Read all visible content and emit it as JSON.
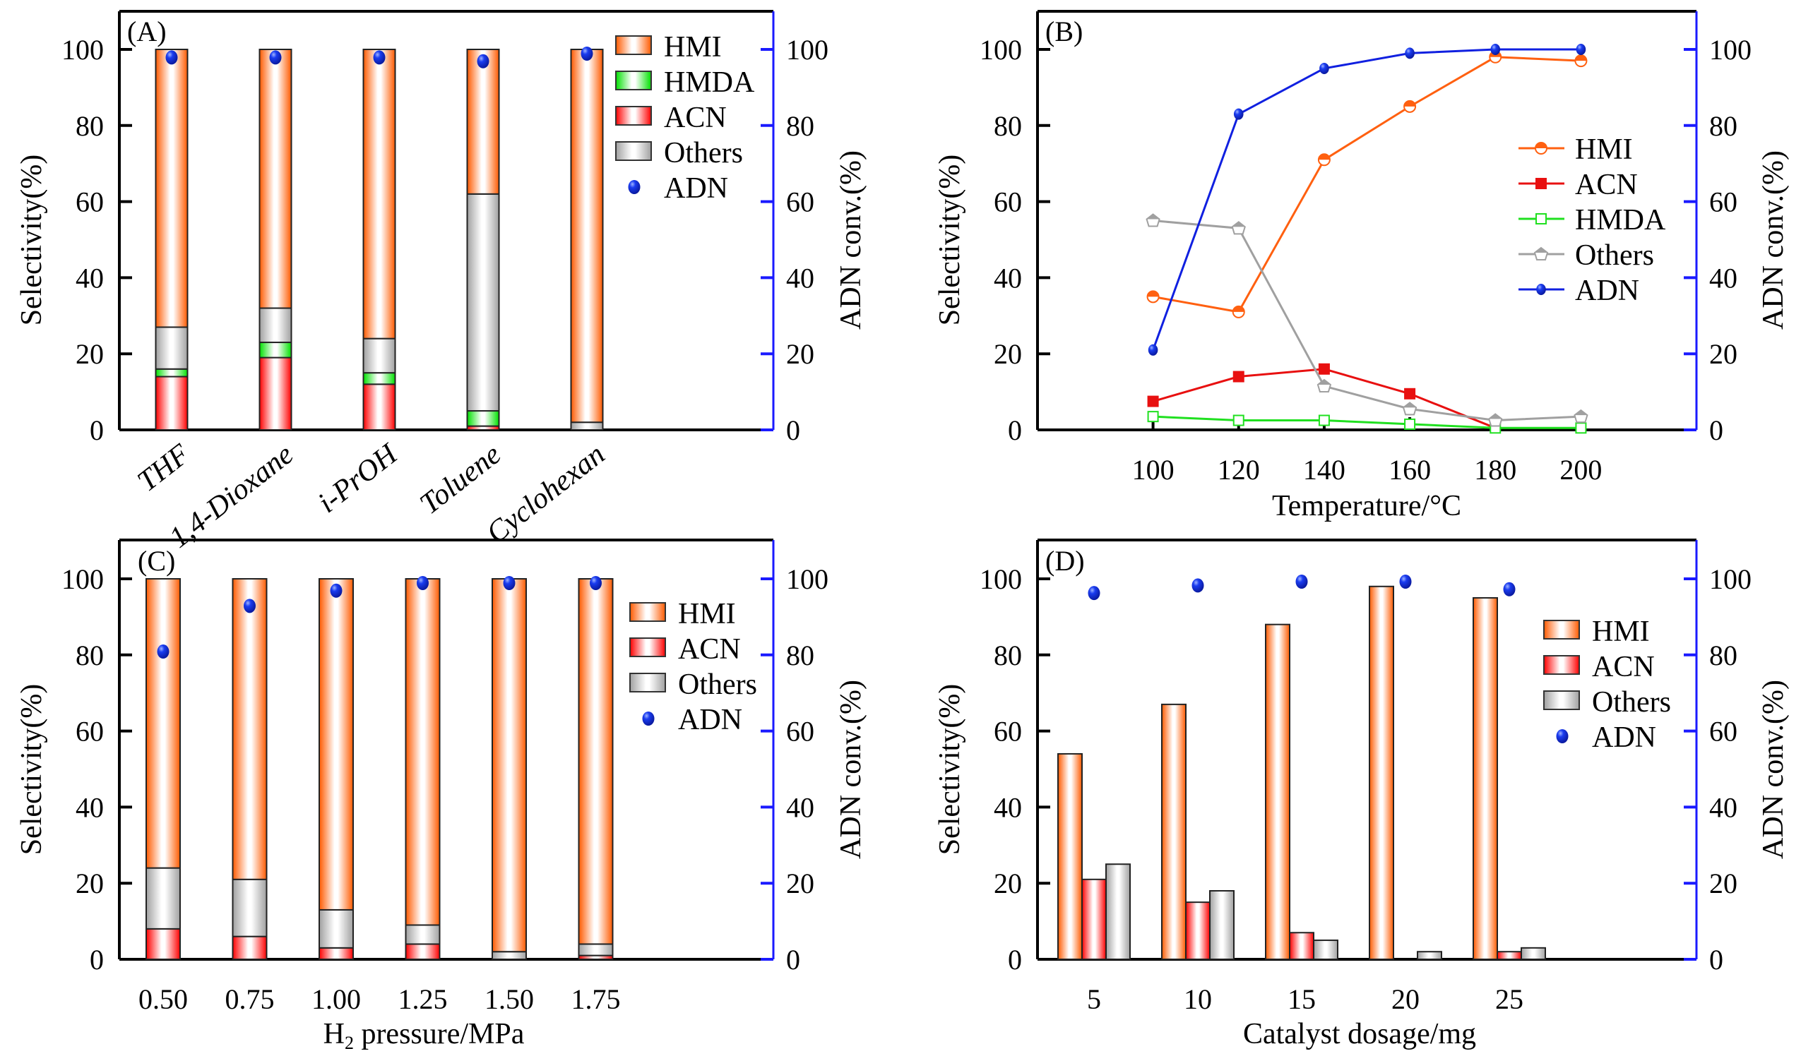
{
  "chart_data": [
    {
      "panel": "A",
      "type": "bar",
      "stacked": true,
      "panel_label": "(A)",
      "categories": [
        "THF",
        "1,4-Dioxane",
        "i-PrOH",
        "Toluene",
        "Cyclohexan"
      ],
      "category_style": "rotated-italic",
      "series": [
        {
          "name": "ACN",
          "values": [
            14,
            19,
            12,
            1,
            0
          ],
          "color": "#ff0000"
        },
        {
          "name": "HMDA",
          "values": [
            2,
            4,
            3,
            4,
            0
          ],
          "color": "#00e000"
        },
        {
          "name": "Others",
          "values": [
            11,
            9,
            9,
            57,
            2
          ],
          "color": "#a0a0a0"
        },
        {
          "name": "HMI",
          "values": [
            73,
            68,
            76,
            38,
            98
          ],
          "color": "#ff5a00"
        }
      ],
      "secondary": {
        "name": "ADN",
        "type": "scatter",
        "values": [
          99,
          99,
          99,
          98,
          100
        ],
        "color": "#1030e0"
      },
      "legend": [
        "HMI",
        "HMDA",
        "ACN",
        "Others",
        "ADN"
      ],
      "legend_position": "top-right",
      "xlabel": "",
      "ylabel": "Selectivity(%)",
      "y2label": "ADN conv.(%)",
      "ylim": [
        0,
        110
      ],
      "y2lim": [
        0,
        110
      ],
      "yticks": [
        0,
        20,
        40,
        60,
        80,
        100
      ],
      "grid": false
    },
    {
      "panel": "B",
      "type": "line",
      "panel_label": "(B)",
      "x": [
        100,
        120,
        140,
        160,
        180,
        200
      ],
      "series": [
        {
          "name": "HMI",
          "values": [
            35,
            31,
            71,
            85,
            98,
            97
          ],
          "color": "#ff6010",
          "marker": "half-circle"
        },
        {
          "name": "ACN",
          "values": [
            7.5,
            14,
            16,
            9.5,
            0.5,
            null
          ],
          "color": "#e81010",
          "marker": "filled-square"
        },
        {
          "name": "HMDA",
          "values": [
            3.5,
            2.5,
            2.5,
            1.5,
            0.5,
            0.5
          ],
          "color": "#20e020",
          "marker": "open-square"
        },
        {
          "name": "Others",
          "values": [
            55,
            53,
            11.5,
            5.5,
            2.5,
            3.5
          ],
          "color": "#a0a0a0",
          "marker": "pentagon"
        },
        {
          "name": "ADN",
          "values": [
            21,
            83,
            95,
            99,
            100,
            100
          ],
          "color": "#1020e0",
          "marker": "ball",
          "axis": "right"
        }
      ],
      "legend": [
        "HMI",
        "ACN",
        "HMDA",
        "Others",
        "ADN"
      ],
      "legend_position": "right",
      "xlabel": "Temperature/°C",
      "ylabel": "Selectivity(%)",
      "y2label": "ADN conv.(%)",
      "xlim": [
        73,
        227
      ],
      "xticks": [
        100,
        120,
        140,
        160,
        180,
        200
      ],
      "ylim": [
        0,
        110
      ],
      "y2lim": [
        0,
        110
      ],
      "yticks": [
        0,
        20,
        40,
        60,
        80,
        100
      ],
      "grid": false
    },
    {
      "panel": "C",
      "type": "bar",
      "stacked": true,
      "panel_label": "(C)",
      "categories": [
        "0.50",
        "0.75",
        "1.00",
        "1.25",
        "1.50",
        "1.75"
      ],
      "series": [
        {
          "name": "ACN",
          "values": [
            8,
            6,
            3,
            4,
            0,
            1
          ],
          "color": "#ff0000"
        },
        {
          "name": "Others",
          "values": [
            16,
            15,
            10,
            5,
            2,
            3
          ],
          "color": "#a0a0a0"
        },
        {
          "name": "HMI",
          "values": [
            76,
            79,
            87,
            91,
            98,
            96
          ],
          "color": "#ff5a00"
        }
      ],
      "secondary": {
        "name": "ADN",
        "type": "scatter",
        "values": [
          82,
          94,
          98,
          100,
          100,
          100
        ],
        "color": "#1030e0"
      },
      "legend": [
        "HMI",
        "ACN",
        "Others",
        "ADN"
      ],
      "legend_position": "right",
      "xlabel_main": "H",
      "xlabel_sub": "2",
      "xlabel_rest": " pressure/MPa",
      "xlabel": "H2 pressure/MPa",
      "ylabel": "Selectivity(%)",
      "y2label": "ADN conv.(%)",
      "ylim": [
        0,
        110
      ],
      "y2lim": [
        0,
        110
      ],
      "yticks": [
        0,
        20,
        40,
        60,
        80,
        100
      ],
      "grid": false
    },
    {
      "panel": "D",
      "type": "bar",
      "stacked": false,
      "panel_label": "(D)",
      "categories": [
        "5",
        "10",
        "15",
        "20",
        "25"
      ],
      "series": [
        {
          "name": "HMI",
          "values": [
            54,
            67,
            88,
            98,
            95
          ],
          "color": "#ff5a00"
        },
        {
          "name": "ACN",
          "values": [
            21,
            15,
            7,
            0,
            2
          ],
          "color": "#ff0000"
        },
        {
          "name": "Others",
          "values": [
            25,
            18,
            5,
            2,
            3
          ],
          "color": "#a0a0a0"
        }
      ],
      "secondary": {
        "name": "ADN",
        "type": "scatter",
        "values": [
          97,
          99,
          100,
          100,
          98
        ],
        "color": "#1030e0"
      },
      "legend": [
        "HMI",
        "ACN",
        "Others",
        "ADN"
      ],
      "legend_position": "right",
      "xlabel": "Catalyst dosage/mg",
      "ylabel": "Selectivity(%)",
      "y2label": "ADN conv.(%)",
      "ylim": [
        0,
        110
      ],
      "y2lim": [
        0,
        110
      ],
      "yticks": [
        0,
        20,
        40,
        60,
        80,
        100
      ],
      "grid": false
    }
  ]
}
